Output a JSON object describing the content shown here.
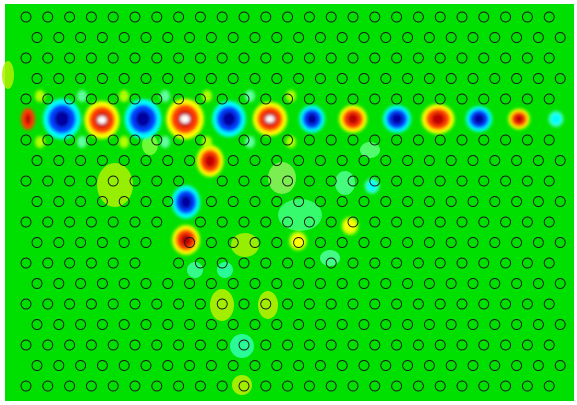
{
  "figure": {
    "background_color": "#00e000",
    "frame_color": "#ffffff",
    "hole_stroke_color": "#1a1a1a",
    "colormap": {
      "strong_positive": "#c00000",
      "positive": "#ff4000",
      "weak_positive": "#ffff00",
      "weak_negative": "#00ffff",
      "negative": "#0040ff",
      "strong_negative": "#0000a0",
      "peak": "#ffffff"
    },
    "lattice": {
      "rows": 19,
      "row_period": 20.5,
      "hole_radius": 5
    },
    "waveguides": [
      {
        "orientation": "horizontal",
        "row": 5
      },
      {
        "orientation": "diagonal-branch",
        "from_row": 6,
        "to_row": 12
      }
    ],
    "field_lobes": [
      {
        "kind": "neg",
        "amp": 1.0
      },
      {
        "kind": "pos",
        "amp": 1.0
      },
      {
        "kind": "neg",
        "amp": 0.95
      },
      {
        "kind": "pos",
        "amp": 1.0
      },
      {
        "kind": "neg",
        "amp": 0.9
      },
      {
        "kind": "pos",
        "amp": 0.95
      },
      {
        "kind": "neg",
        "amp": 0.7
      },
      {
        "kind": "pos",
        "amp": 0.7
      },
      {
        "kind": "neg",
        "amp": 0.7
      },
      {
        "kind": "pos",
        "amp": 0.85
      },
      {
        "kind": "neg",
        "amp": 0.75
      },
      {
        "kind": "pos",
        "amp": 0.55
      },
      {
        "kind": "weakneg",
        "amp": 0.3
      },
      {
        "kind": "pos",
        "amp": 0.8
      },
      {
        "kind": "neg",
        "amp": 0.9
      },
      {
        "kind": "pos",
        "amp": 0.85
      },
      {
        "kind": "weakpos",
        "amp": 0.4
      },
      {
        "kind": "weakpos",
        "amp": 0.3
      },
      {
        "kind": "weakneg",
        "amp": 0.25
      }
    ]
  }
}
